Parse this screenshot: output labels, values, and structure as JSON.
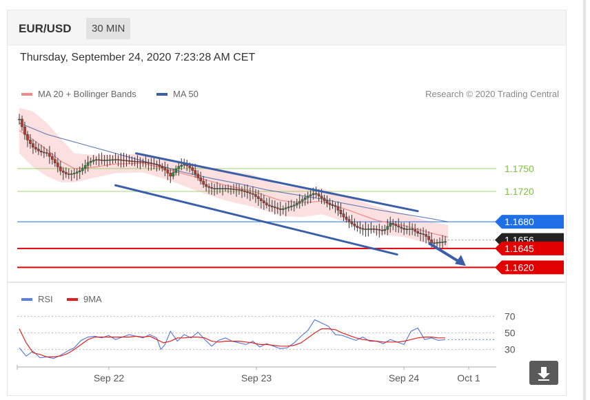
{
  "header": {
    "symbol": "EUR/USD",
    "timeframe": "30 MIN"
  },
  "timestamp": "Thursday, September 24, 2020 7:23:28 AM CET",
  "legend": {
    "ma20_label": "MA 20 + Bollinger Bands",
    "ma20_color": "#f08a8a",
    "ma50_label": "MA 50",
    "ma50_color": "#3a5fa8",
    "credit": "Research © 2020 Trading Central"
  },
  "rsi_legend": {
    "rsi_label": "RSI",
    "rsi_color": "#5b7fe0",
    "ma_label": "9MA",
    "ma_color": "#e02020"
  },
  "icons": {
    "download": "download-arrow-icon"
  },
  "chart_data": [
    {
      "type": "candlestick",
      "title": "EUR/USD",
      "x_ticks": [
        "Sep 22",
        "Sep 23",
        "Sep 24",
        "Oct 1"
      ],
      "ylim": [
        1.1605,
        1.1825
      ],
      "levels": [
        {
          "value": 1.175,
          "label": "1.1750",
          "color": "#7dc23a",
          "kind": "resistance"
        },
        {
          "value": 1.172,
          "label": "1.1720",
          "color": "#7dc23a",
          "kind": "resistance"
        },
        {
          "value": 1.168,
          "label": "1.1680",
          "color": "#1f6fe6",
          "kind": "pivot"
        },
        {
          "value": 1.1656,
          "label": "1.1656",
          "color": "#333333",
          "kind": "last"
        },
        {
          "value": 1.1645,
          "label": "1.1645",
          "color": "#e00000",
          "kind": "support"
        },
        {
          "value": 1.162,
          "label": "1.1620",
          "color": "#e00000",
          "kind": "support"
        }
      ],
      "close_path": [
        [
          0,
          1.1815
        ],
        [
          5,
          1.179
        ],
        [
          10,
          1.1778
        ],
        [
          15,
          1.1772
        ],
        [
          20,
          1.177
        ],
        [
          25,
          1.176
        ],
        [
          30,
          1.1747
        ],
        [
          35,
          1.1742
        ],
        [
          40,
          1.1744
        ],
        [
          45,
          1.1748
        ],
        [
          50,
          1.1758
        ],
        [
          55,
          1.1762
        ],
        [
          60,
          1.1761
        ],
        [
          70,
          1.1762
        ],
        [
          80,
          1.176
        ],
        [
          88,
          1.1759
        ],
        [
          95,
          1.1757
        ],
        [
          100,
          1.1755
        ],
        [
          105,
          1.175
        ],
        [
          110,
          1.174
        ],
        [
          115,
          1.1752
        ],
        [
          120,
          1.1756
        ],
        [
          125,
          1.175
        ],
        [
          130,
          1.1738
        ],
        [
          135,
          1.1727
        ],
        [
          140,
          1.1724
        ],
        [
          150,
          1.1724
        ],
        [
          160,
          1.1722
        ],
        [
          170,
          1.1716
        ],
        [
          180,
          1.1702
        ],
        [
          190,
          1.1696
        ],
        [
          200,
          1.1702
        ],
        [
          205,
          1.1708
        ],
        [
          210,
          1.1714
        ],
        [
          215,
          1.1718
        ],
        [
          220,
          1.1711
        ],
        [
          225,
          1.1703
        ],
        [
          230,
          1.17
        ],
        [
          235,
          1.1688
        ],
        [
          240,
          1.168
        ],
        [
          245,
          1.1673
        ],
        [
          250,
          1.167
        ],
        [
          255,
          1.1671
        ],
        [
          260,
          1.167
        ],
        [
          265,
          1.1668
        ],
        [
          270,
          1.1678
        ],
        [
          275,
          1.1674
        ],
        [
          280,
          1.167
        ],
        [
          285,
          1.1671
        ],
        [
          290,
          1.1665
        ],
        [
          295,
          1.1663
        ],
        [
          300,
          1.1652
        ],
        [
          310,
          1.1654
        ]
      ],
      "ma20": [
        [
          0,
          1.18
        ],
        [
          10,
          1.1788
        ],
        [
          20,
          1.1775
        ],
        [
          30,
          1.176
        ],
        [
          40,
          1.175
        ],
        [
          55,
          1.1752
        ],
        [
          70,
          1.1756
        ],
        [
          90,
          1.1757
        ],
        [
          110,
          1.1748
        ],
        [
          130,
          1.1738
        ],
        [
          150,
          1.1728
        ],
        [
          170,
          1.172
        ],
        [
          190,
          1.1708
        ],
        [
          205,
          1.1705
        ],
        [
          220,
          1.1707
        ],
        [
          240,
          1.1695
        ],
        [
          260,
          1.1682
        ],
        [
          280,
          1.1675
        ],
        [
          300,
          1.1665
        ],
        [
          312,
          1.166
        ]
      ],
      "bollinger_upper": [
        [
          0,
          1.183
        ],
        [
          10,
          1.1825
        ],
        [
          20,
          1.181
        ],
        [
          30,
          1.179
        ],
        [
          40,
          1.177
        ],
        [
          55,
          1.1768
        ],
        [
          70,
          1.1768
        ],
        [
          90,
          1.177
        ],
        [
          110,
          1.1762
        ],
        [
          130,
          1.1755
        ],
        [
          150,
          1.1748
        ],
        [
          170,
          1.1742
        ],
        [
          190,
          1.1728
        ],
        [
          205,
          1.1725
        ],
        [
          220,
          1.1724
        ],
        [
          240,
          1.1712
        ],
        [
          260,
          1.17
        ],
        [
          280,
          1.169
        ],
        [
          300,
          1.168
        ],
        [
          312,
          1.1676
        ]
      ],
      "bollinger_lower": [
        [
          0,
          1.177
        ],
        [
          10,
          1.1752
        ],
        [
          20,
          1.174
        ],
        [
          30,
          1.1732
        ],
        [
          40,
          1.1732
        ],
        [
          55,
          1.1738
        ],
        [
          70,
          1.1744
        ],
        [
          90,
          1.1745
        ],
        [
          110,
          1.1734
        ],
        [
          130,
          1.172
        ],
        [
          150,
          1.1708
        ],
        [
          170,
          1.17
        ],
        [
          190,
          1.1688
        ],
        [
          205,
          1.1686
        ],
        [
          220,
          1.169
        ],
        [
          240,
          1.1678
        ],
        [
          260,
          1.1664
        ],
        [
          280,
          1.166
        ],
        [
          300,
          1.165
        ],
        [
          312,
          1.1646
        ]
      ],
      "ma50": [
        [
          0,
          1.181
        ],
        [
          20,
          1.1795
        ],
        [
          40,
          1.1785
        ],
        [
          60,
          1.1775
        ],
        [
          80,
          1.1765
        ],
        [
          100,
          1.1755
        ],
        [
          120,
          1.1745
        ],
        [
          140,
          1.1737
        ],
        [
          160,
          1.173
        ],
        [
          180,
          1.1722
        ],
        [
          200,
          1.1716
        ],
        [
          220,
          1.171
        ],
        [
          240,
          1.1703
        ],
        [
          260,
          1.1696
        ],
        [
          280,
          1.169
        ],
        [
          300,
          1.1684
        ],
        [
          312,
          1.168
        ]
      ],
      "channel": [
        {
          "from": [
            85,
            1.177
          ],
          "to": [
            290,
            1.1694
          ]
        },
        {
          "from": [
            70,
            1.1728
          ],
          "to": [
            275,
            1.1637
          ]
        }
      ],
      "forecast_arrow": {
        "from": [
          298,
          1.1652
        ],
        "to": [
          325,
          1.1622
        ]
      }
    },
    {
      "type": "line",
      "title": "RSI",
      "ylim": [
        18,
        78
      ],
      "reference_levels": [
        70,
        50,
        30
      ],
      "series": [
        {
          "name": "RSI",
          "color": "#5b7fe0",
          "values": [
            [
              0,
              32
            ],
            [
              5,
              22
            ],
            [
              10,
              28
            ],
            [
              15,
              20
            ],
            [
              20,
              21
            ],
            [
              25,
              19
            ],
            [
              30,
              23
            ],
            [
              35,
              28
            ],
            [
              40,
              32
            ],
            [
              45,
              41
            ],
            [
              50,
              45
            ],
            [
              55,
              46
            ],
            [
              60,
              44
            ],
            [
              65,
              47
            ],
            [
              70,
              42
            ],
            [
              75,
              45
            ],
            [
              80,
              48
            ],
            [
              85,
              46
            ],
            [
              90,
              44
            ],
            [
              95,
              48
            ],
            [
              100,
              44
            ],
            [
              103,
              30
            ],
            [
              106,
              36
            ],
            [
              110,
              52
            ],
            [
              115,
              40
            ],
            [
              120,
              48
            ],
            [
              125,
              44
            ],
            [
              130,
              51
            ],
            [
              135,
              42
            ],
            [
              140,
              34
            ],
            [
              145,
              41
            ],
            [
              150,
              44
            ],
            [
              155,
              40
            ],
            [
              160,
              38
            ],
            [
              165,
              36
            ],
            [
              170,
              40
            ],
            [
              175,
              33
            ],
            [
              180,
              37
            ],
            [
              185,
              34
            ],
            [
              190,
              31
            ],
            [
              195,
              32
            ],
            [
              200,
              38
            ],
            [
              205,
              46
            ],
            [
              210,
              53
            ],
            [
              215,
              66
            ],
            [
              220,
              62
            ],
            [
              225,
              58
            ],
            [
              230,
              48
            ],
            [
              235,
              47
            ],
            [
              240,
              44
            ],
            [
              245,
              41
            ],
            [
              250,
              45
            ],
            [
              255,
              40
            ],
            [
              260,
              40
            ],
            [
              265,
              37
            ],
            [
              270,
              42
            ],
            [
              275,
              39
            ],
            [
              280,
              36
            ],
            [
              285,
              52
            ],
            [
              290,
              56
            ],
            [
              295,
              42
            ],
            [
              300,
              44
            ],
            [
              305,
              41
            ],
            [
              310,
              42
            ]
          ]
        },
        {
          "name": "9MA",
          "color": "#e02020",
          "values": [
            [
              0,
              55
            ],
            [
              5,
              38
            ],
            [
              10,
              26
            ],
            [
              15,
              24
            ],
            [
              20,
              21
            ],
            [
              25,
              21
            ],
            [
              30,
              22
            ],
            [
              35,
              25
            ],
            [
              40,
              30
            ],
            [
              45,
              36
            ],
            [
              50,
              42
            ],
            [
              55,
              45
            ],
            [
              60,
              45
            ],
            [
              65,
              45
            ],
            [
              70,
              45
            ],
            [
              75,
              45
            ],
            [
              80,
              45
            ],
            [
              85,
              46
            ],
            [
              90,
              45
            ],
            [
              95,
              46
            ],
            [
              100,
              42
            ],
            [
              105,
              38
            ],
            [
              110,
              40
            ],
            [
              115,
              44
            ],
            [
              120,
              44
            ],
            [
              125,
              45
            ],
            [
              130,
              45
            ],
            [
              135,
              44
            ],
            [
              140,
              40
            ],
            [
              145,
              39
            ],
            [
              150,
              40
            ],
            [
              155,
              40
            ],
            [
              160,
              40
            ],
            [
              165,
              39
            ],
            [
              170,
              38
            ],
            [
              175,
              36
            ],
            [
              180,
              36
            ],
            [
              185,
              35
            ],
            [
              190,
              34
            ],
            [
              195,
              34
            ],
            [
              200,
              35
            ],
            [
              205,
              38
            ],
            [
              210,
              44
            ],
            [
              215,
              50
            ],
            [
              220,
              55
            ],
            [
              225,
              55
            ],
            [
              230,
              54
            ],
            [
              235,
              50
            ],
            [
              240,
              47
            ],
            [
              245,
              44
            ],
            [
              250,
              42
            ],
            [
              255,
              41
            ],
            [
              260,
              40
            ],
            [
              265,
              39
            ],
            [
              270,
              39
            ],
            [
              275,
              39
            ],
            [
              280,
              40
            ],
            [
              285,
              42
            ],
            [
              290,
              44
            ],
            [
              295,
              45
            ],
            [
              300,
              45
            ],
            [
              305,
              44
            ],
            [
              310,
              44
            ]
          ]
        }
      ]
    }
  ]
}
